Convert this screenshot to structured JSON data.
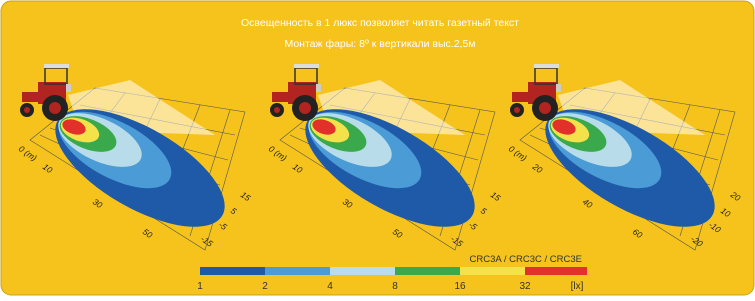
{
  "header": {
    "line1": "Освещенность в 1 люкс позволяет читать газетный текст",
    "line2": "Монтаж фары: 8º к вертикали выс.2,5м"
  },
  "panels": [
    {
      "distance_labels": [
        "0 (m)",
        "10",
        "30",
        "50"
      ],
      "width_labels": [
        "15",
        "5",
        "-5",
        "-15"
      ]
    },
    {
      "distance_labels": [
        "0 (m)",
        "10",
        "30",
        "50"
      ],
      "width_labels": [
        "15",
        "5",
        "-5",
        "-15"
      ]
    },
    {
      "distance_labels": [
        "0 (m)",
        "20",
        "40",
        "60"
      ],
      "width_labels": [
        "20",
        "10",
        "-10",
        "-20"
      ]
    }
  ],
  "legend": {
    "models": "CRC3A /  CRC3C / CRC3E",
    "scale": [
      "1",
      "2",
      "4",
      "8",
      "16",
      "32",
      "[lx]"
    ]
  }
}
